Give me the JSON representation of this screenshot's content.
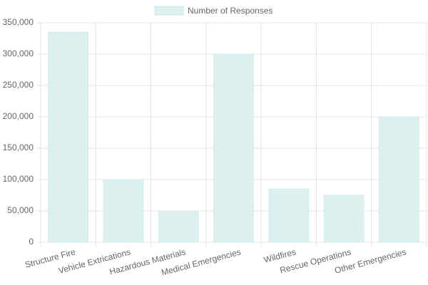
{
  "chart_data": {
    "type": "bar",
    "categories": [
      "Structure Fire",
      "Vehicle Extrications",
      "Hazardous Materials",
      "Medical Emergencies",
      "Wildfires",
      "Rescue Operations",
      "Other Emergencies"
    ],
    "series": [
      {
        "name": "Number of Responses",
        "color": "#dbf0ef",
        "values": [
          335000,
          100000,
          50000,
          300000,
          85000,
          75000,
          200000
        ]
      }
    ],
    "ylim": [
      0,
      350000
    ],
    "yticks": [
      0,
      {
        "value": 50000,
        "label": "50,000"
      },
      {
        "value": 100000,
        "label": "100,000"
      },
      {
        "value": 150000,
        "label": "150,000"
      },
      {
        "value": 200000,
        "label": "200,000"
      },
      {
        "value": 250000,
        "label": "250,000"
      },
      {
        "value": 300000,
        "label": "300,000"
      },
      {
        "value": 350000,
        "label": "350,000"
      }
    ],
    "grid": true,
    "legend": "top"
  }
}
